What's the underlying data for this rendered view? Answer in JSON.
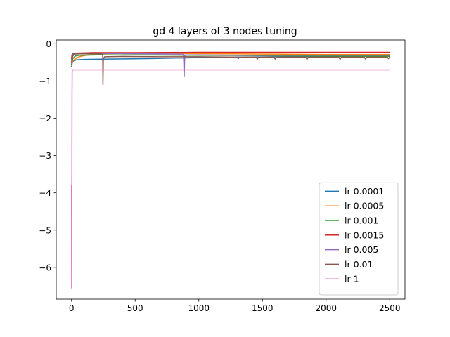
{
  "chart_data": {
    "type": "line",
    "title": "gd 4 layers of 3 nodes tuning",
    "xlabel": "",
    "ylabel": "",
    "xlim": [
      -120,
      2620
    ],
    "ylim": [
      -6.85,
      0.1
    ],
    "xticks": [
      0,
      500,
      1000,
      1500,
      2000,
      2500
    ],
    "xtick_labels": [
      "0",
      "500",
      "1000",
      "1500",
      "2000",
      "2500"
    ],
    "yticks": [
      0,
      -1,
      -2,
      -3,
      -4,
      -5,
      -6
    ],
    "ytick_labels": [
      "0",
      "−1",
      "−2",
      "−3",
      "−4",
      "−5",
      "−6"
    ],
    "grid": false,
    "legend_position": "lower-right",
    "series": [
      {
        "name": "lr 0.0001",
        "color": "#1f77b4",
        "points": [
          [
            0,
            -0.62
          ],
          [
            5,
            -0.52
          ],
          [
            15,
            -0.46
          ],
          [
            40,
            -0.43
          ],
          [
            100,
            -0.42
          ],
          [
            300,
            -0.41
          ],
          [
            600,
            -0.4
          ],
          [
            900,
            -0.38
          ],
          [
            1200,
            -0.36
          ],
          [
            1600,
            -0.35
          ],
          [
            2000,
            -0.34
          ],
          [
            2500,
            -0.33
          ]
        ]
      },
      {
        "name": "lr 0.0005",
        "color": "#ff7f0e",
        "points": [
          [
            0,
            -0.58
          ],
          [
            10,
            -0.46
          ],
          [
            40,
            -0.38
          ],
          [
            80,
            -0.33
          ],
          [
            150,
            -0.29
          ],
          [
            200,
            -0.27
          ],
          [
            400,
            -0.26
          ],
          [
            800,
            -0.26
          ],
          [
            1200,
            -0.27
          ],
          [
            1600,
            -0.28
          ],
          [
            2000,
            -0.29
          ],
          [
            2500,
            -0.29
          ]
        ]
      },
      {
        "name": "lr 0.001",
        "color": "#2ca02c",
        "points": [
          [
            0,
            -0.55
          ],
          [
            10,
            -0.4
          ],
          [
            30,
            -0.33
          ],
          [
            60,
            -0.31
          ],
          [
            200,
            -0.3
          ],
          [
            500,
            -0.3
          ],
          [
            1000,
            -0.31
          ],
          [
            1500,
            -0.32
          ],
          [
            2000,
            -0.33
          ],
          [
            2500,
            -0.34
          ]
        ]
      },
      {
        "name": "lr 0.0015",
        "color": "#d62728",
        "points": [
          [
            0,
            -0.5
          ],
          [
            8,
            -0.35
          ],
          [
            20,
            -0.28
          ],
          [
            50,
            -0.25
          ],
          [
            150,
            -0.24
          ],
          [
            500,
            -0.24
          ],
          [
            1000,
            -0.23
          ],
          [
            1500,
            -0.23
          ],
          [
            2000,
            -0.23
          ],
          [
            2500,
            -0.23
          ]
        ]
      },
      {
        "name": "lr 0.005",
        "color": "#9467bd",
        "points": [
          [
            0,
            -0.45
          ],
          [
            5,
            -0.32
          ],
          [
            15,
            -0.28
          ],
          [
            100,
            -0.27
          ],
          [
            300,
            -0.26
          ],
          [
            600,
            -0.27
          ],
          [
            880,
            -0.28
          ],
          [
            885,
            -0.88
          ],
          [
            890,
            -0.3
          ],
          [
            1000,
            -0.3
          ],
          [
            1300,
            -0.31
          ],
          [
            1600,
            -0.31
          ],
          [
            2000,
            -0.31
          ],
          [
            2500,
            -0.31
          ]
        ]
      },
      {
        "name": "lr 0.01",
        "color": "#8c564b",
        "points": [
          [
            0,
            -0.4
          ],
          [
            3,
            -0.3
          ],
          [
            10,
            -0.27
          ],
          [
            200,
            -0.27
          ],
          [
            245,
            -0.28
          ],
          [
            247,
            -1.1
          ],
          [
            250,
            -0.4
          ],
          [
            260,
            -0.35
          ],
          [
            400,
            -0.34
          ],
          [
            700,
            -0.35
          ],
          [
            1000,
            -0.35
          ],
          [
            1300,
            -0.36
          ],
          [
            1310,
            -0.4
          ],
          [
            1320,
            -0.36
          ],
          [
            1450,
            -0.36
          ],
          [
            1460,
            -0.41
          ],
          [
            1470,
            -0.36
          ],
          [
            1590,
            -0.36
          ],
          [
            1600,
            -0.41
          ],
          [
            1610,
            -0.36
          ],
          [
            1840,
            -0.36
          ],
          [
            1850,
            -0.42
          ],
          [
            1860,
            -0.36
          ],
          [
            2100,
            -0.36
          ],
          [
            2110,
            -0.42
          ],
          [
            2120,
            -0.36
          ],
          [
            2300,
            -0.36
          ],
          [
            2310,
            -0.41
          ],
          [
            2320,
            -0.36
          ],
          [
            2480,
            -0.36
          ],
          [
            2490,
            -0.4
          ],
          [
            2500,
            -0.36
          ]
        ]
      },
      {
        "name": "lr 1",
        "color": "#e377c2",
        "points": [
          [
            0,
            -3.8
          ],
          [
            1,
            -6.55
          ],
          [
            2,
            -5.2
          ],
          [
            3,
            -3.0
          ],
          [
            4,
            -1.4
          ],
          [
            5,
            -0.75
          ],
          [
            8,
            -0.7
          ],
          [
            50,
            -0.7
          ],
          [
            500,
            -0.7
          ],
          [
            1000,
            -0.7
          ],
          [
            1500,
            -0.7
          ],
          [
            2000,
            -0.7
          ],
          [
            2500,
            -0.7
          ]
        ]
      }
    ]
  }
}
